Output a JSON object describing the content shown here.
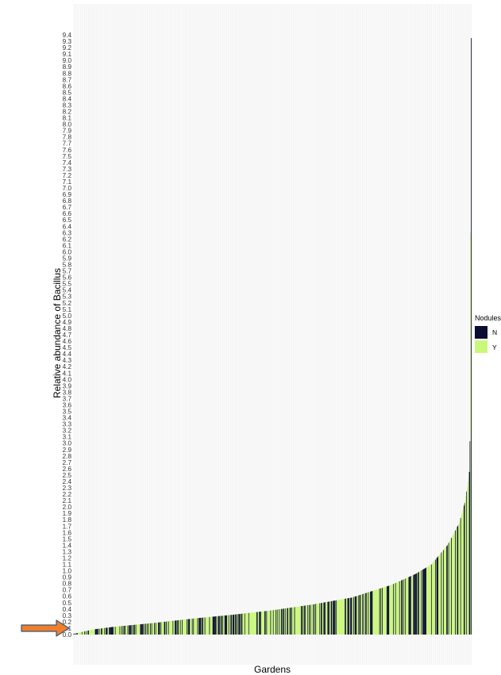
{
  "chart_data": {
    "type": "bar",
    "title": "",
    "xlabel": "Gardens",
    "ylabel": "Relative abundance of Bacillus",
    "ylim": [
      0,
      9.4
    ],
    "y_tick_step": 0.1,
    "bar_count": 600,
    "grid": true,
    "x_tick_labels": false,
    "sorted": "ascending",
    "annotation": "arrow-pointing-at-y-0.2",
    "legend": {
      "title": "Nodules",
      "position": "right",
      "entries": [
        {
          "label": "N",
          "color": "#0b0d33"
        },
        {
          "label": "Y",
          "color": "#c9f779"
        }
      ]
    },
    "quantiles": [
      [
        0.0,
        0.01
      ],
      [
        0.05,
        0.08
      ],
      [
        0.1,
        0.12
      ],
      [
        0.2,
        0.18
      ],
      [
        0.3,
        0.25
      ],
      [
        0.4,
        0.31
      ],
      [
        0.5,
        0.38
      ],
      [
        0.6,
        0.47
      ],
      [
        0.7,
        0.58
      ],
      [
        0.8,
        0.78
      ],
      [
        0.86,
        0.95
      ],
      [
        0.9,
        1.1
      ],
      [
        0.94,
        1.4
      ],
      [
        0.97,
        1.75
      ],
      [
        0.985,
        2.1
      ],
      [
        0.992,
        2.4
      ],
      [
        0.996,
        2.6
      ],
      [
        0.997,
        3.25
      ],
      [
        0.998,
        5.7
      ],
      [
        1.0,
        9.35
      ]
    ]
  }
}
